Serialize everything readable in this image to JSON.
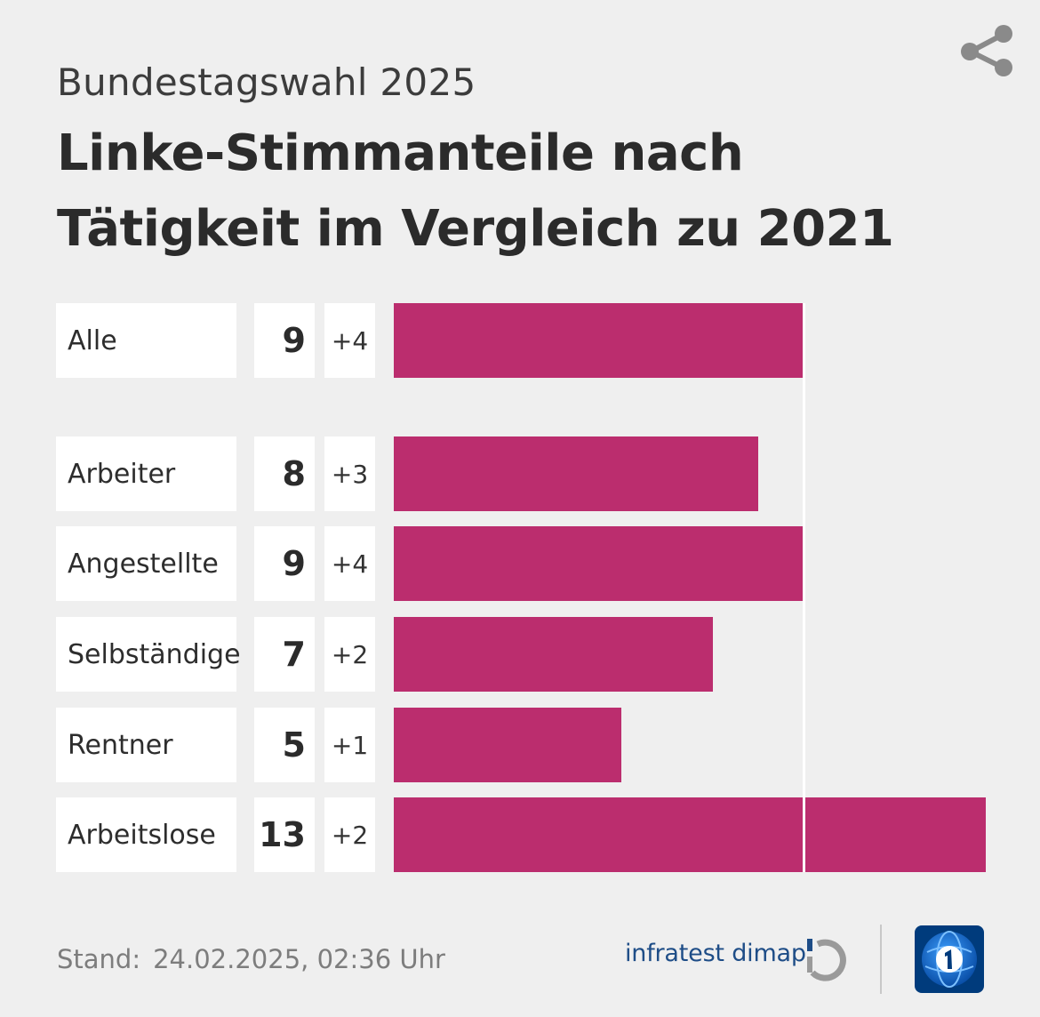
{
  "header": {
    "subtitle": "Bundestagswahl 2025",
    "title": "Linke-Stimmanteile nach Tätigkeit im Vergleich zu 2021",
    "share_icon": "share-icon"
  },
  "chart_data": {
    "type": "bar",
    "orientation": "horizontal",
    "title": "Linke-Stimmanteile nach Tätigkeit im Vergleich zu 2021",
    "subtitle": "Bundestagswahl 2025",
    "categories": [
      "Alle",
      "Arbeiter",
      "Angestellte",
      "Selbständige",
      "Rentner",
      "Arbeitslose"
    ],
    "values": [
      9,
      8,
      9,
      7,
      5,
      13
    ],
    "value_labels": [
      "9",
      "8",
      "9",
      "7",
      "5",
      "13"
    ],
    "changes": [
      "+4",
      "+3",
      "+4",
      "+2",
      "+1",
      "+2"
    ],
    "bar_color": "#bb2d6e",
    "reference_value": 9,
    "xlim": [
      0,
      13
    ]
  },
  "footer": {
    "stand_label": "Stand:",
    "stand_date": "24.02.2025, 02:36 Uhr",
    "source": "infratest dimap",
    "source_icon": "infratest-dimap-logo-icon",
    "broadcaster_icon": "ard-tagesschau-logo-icon"
  },
  "colors": {
    "background": "#efefef",
    "bar": "#bb2d6e",
    "cell": "#ffffff",
    "source_text": "#1e4d87",
    "logo_blue": "#003b7c"
  }
}
